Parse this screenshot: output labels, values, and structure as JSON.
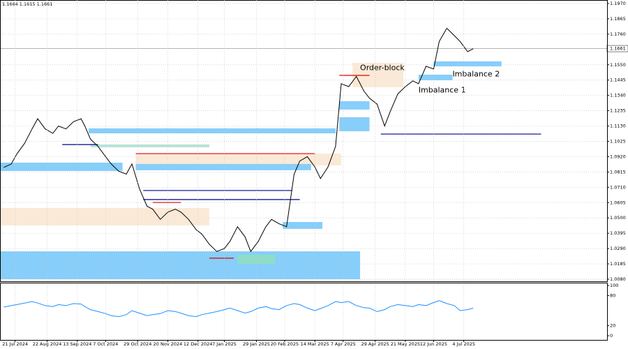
{
  "chart_data": [
    {
      "type": "line",
      "header": "1.1664 1.1615 1.1661",
      "xlim": [
        0,
        322
      ],
      "ylim": [
        1.008,
        1.197
      ],
      "yticks": [
        {
          "value": 1.197,
          "label": "1.1970"
        },
        {
          "value": 1.1865,
          "label": "1.1865"
        },
        {
          "value": 1.176,
          "label": "1.1760"
        },
        {
          "value": 1.155,
          "label": "1.1550"
        },
        {
          "value": 1.1445,
          "label": "1.1445"
        },
        {
          "value": 1.134,
          "label": "1.1340"
        },
        {
          "value": 1.1235,
          "label": "1.1235"
        },
        {
          "value": 1.113,
          "label": "1.1130"
        },
        {
          "value": 1.1025,
          "label": "1.1025"
        },
        {
          "value": 1.092,
          "label": "1.0920"
        },
        {
          "value": 1.0815,
          "label": "1.0815"
        },
        {
          "value": 1.071,
          "label": "1.0710"
        },
        {
          "value": 1.0605,
          "label": "1.0605"
        },
        {
          "value": 1.05,
          "label": "1.0500"
        },
        {
          "value": 1.0395,
          "label": "1.0395"
        },
        {
          "value": 1.029,
          "label": "1.0290"
        },
        {
          "value": 1.0185,
          "label": "1.0185"
        },
        {
          "value": 1.008,
          "label": "1.0080"
        }
      ],
      "grid": true,
      "last": {
        "value": 1.1661,
        "label": "1.1661"
      },
      "x": [
        2,
        6,
        9,
        13,
        17,
        20,
        24,
        28,
        31,
        35,
        39,
        43,
        45,
        48,
        52,
        56,
        59,
        63,
        67,
        70,
        74,
        78,
        81,
        85,
        89,
        93,
        96,
        100,
        104,
        107,
        111,
        115,
        119,
        122,
        126,
        130,
        133,
        137,
        141,
        144,
        148,
        152,
        156,
        159,
        163,
        167,
        170,
        174,
        178,
        181,
        185,
        189,
        193,
        196,
        200,
        204,
        207,
        211,
        215,
        219,
        222,
        226,
        230,
        233,
        237,
        241,
        244,
        248,
        251
      ],
      "series": [
        {
          "color": "#000000",
          "values": [
            1.0846,
            1.087,
            1.094,
            1.101,
            1.111,
            1.118,
            1.111,
            1.108,
            1.113,
            1.111,
            1.116,
            1.118,
            1.113,
            1.104,
            1.099,
            1.092,
            1.087,
            1.082,
            1.08,
            1.087,
            1.07,
            1.058,
            1.056,
            1.049,
            1.054,
            1.056,
            1.054,
            1.049,
            1.042,
            1.039,
            1.032,
            1.027,
            1.029,
            1.034,
            1.044,
            1.037,
            1.027,
            1.034,
            1.044,
            1.049,
            1.046,
            1.044,
            1.08,
            1.089,
            1.092,
            1.085,
            1.077,
            1.085,
            1.099,
            1.142,
            1.14,
            1.147,
            1.137,
            1.132,
            1.128,
            1.113,
            1.123,
            1.135,
            1.14,
            1.144,
            1.142,
            1.154,
            1.152,
            1.171,
            1.18,
            1.175,
            1.171,
            1.164,
            1.166
          ]
        }
      ],
      "zones": [
        {
          "x": [
            0,
            191
          ],
          "y": [
            1.008,
            1.0271
          ],
          "color": "#87cefa"
        },
        {
          "x": [
            0,
            111
          ],
          "y": [
            1.0448,
            1.0568
          ],
          "color": "#fbe9d7"
        },
        {
          "x": [
            0,
            65
          ],
          "y": [
            1.0822,
            1.0879
          ],
          "color": "#87cefa"
        },
        {
          "x": [
            72,
            181
          ],
          "y": [
            1.086,
            1.0941
          ],
          "color": "#fbe9d7"
        },
        {
          "x": [
            72,
            165
          ],
          "y": [
            1.0827,
            1.087
          ],
          "color": "#87cefa"
        },
        {
          "x": [
            47,
            178
          ],
          "y": [
            1.108,
            1.1114
          ],
          "color": "#87cefa"
        },
        {
          "x": [
            48,
            111
          ],
          "y": [
            1.0984,
            1.1004
          ],
          "color": "#b7e4d8"
        },
        {
          "x": [
            150,
            171
          ],
          "y": [
            1.0425,
            1.0472
          ],
          "color": "#87cefa"
        },
        {
          "x": [
            126,
            146
          ],
          "y": [
            1.0185,
            1.0248
          ],
          "color": "#8fdcc8"
        },
        {
          "x": [
            180,
            196
          ],
          "y": [
            1.1094,
            1.119
          ],
          "color": "#87cefa"
        },
        {
          "x": [
            180,
            196
          ],
          "y": [
            1.1243,
            1.13
          ],
          "color": "#87cefa"
        },
        {
          "x": [
            187,
            214
          ],
          "y": [
            1.1396,
            1.1563
          ],
          "color": "#fbe9d7"
        },
        {
          "x": [
            222,
            240
          ],
          "y": [
            1.1444,
            1.1482
          ],
          "color": "#87cefa"
        },
        {
          "x": [
            230,
            266
          ],
          "y": [
            1.1539,
            1.1573
          ],
          "color": "#87cefa"
        }
      ],
      "levels": [
        {
          "x": [
            72,
            167
          ],
          "value": 1.0941,
          "color": "#e00000"
        },
        {
          "x": [
            180,
            196
          ],
          "value": 1.1477,
          "color": "#e00000"
        },
        {
          "x": [
            202,
            287
          ],
          "value": 1.1075,
          "color": "#00008b"
        },
        {
          "x": [
            76,
            159
          ],
          "value": 1.0626,
          "color": "#00008b"
        },
        {
          "x": [
            76,
            155
          ],
          "value": 1.0688,
          "color": "#00008b"
        },
        {
          "x": [
            81,
            96
          ],
          "value": 1.0606,
          "color": "#e00000"
        },
        {
          "x": [
            33,
            52
          ],
          "value": 1.1003,
          "color": "#00008b"
        },
        {
          "x": [
            111,
            124
          ],
          "value": 1.0224,
          "color": "#e00000"
        }
      ],
      "annotations": [
        {
          "text": "Order-block",
          "x": 191,
          "y": 1.1527
        },
        {
          "text": "Imbalance 2",
          "x": 240,
          "y": 1.1485
        },
        {
          "text": "Imbalance 1",
          "x": 222,
          "y": 1.1375
        }
      ]
    },
    {
      "type": "line",
      "xlim": [
        0,
        322
      ],
      "ylim": [
        0,
        100
      ],
      "yticks": [
        100,
        80,
        20,
        0
      ],
      "xticks": [
        {
          "value": 8,
          "label": "21 Jul 2024"
        },
        {
          "value": 25,
          "label": "22 Aug 2024"
        },
        {
          "value": 41,
          "label": "13 Sep 2024"
        },
        {
          "value": 56,
          "label": "7 Oct 2024"
        },
        {
          "value": 73,
          "label": "29 Oct 2024"
        },
        {
          "value": 89,
          "label": "20 Nov 2024"
        },
        {
          "value": 105,
          "label": "12 Dec 2024"
        },
        {
          "value": 119,
          "label": "7 Jan 2025"
        },
        {
          "value": 136,
          "label": "29 Jan 2025"
        },
        {
          "value": 151,
          "label": "20 Feb 2025"
        },
        {
          "value": 167,
          "label": "14 Mar 2025"
        },
        {
          "value": 182,
          "label": "7 Apr 2025"
        },
        {
          "value": 199,
          "label": "29 Apr 2025"
        },
        {
          "value": 215,
          "label": "21 May 2025"
        },
        {
          "value": 230,
          "label": "12 Jun 2025"
        },
        {
          "value": 246,
          "label": "4 Jul 2025"
        }
      ],
      "x": [
        2,
        6,
        9,
        13,
        17,
        20,
        24,
        28,
        31,
        35,
        39,
        43,
        45,
        48,
        52,
        56,
        59,
        63,
        67,
        70,
        74,
        78,
        81,
        85,
        89,
        93,
        96,
        100,
        104,
        107,
        111,
        115,
        119,
        122,
        126,
        130,
        133,
        137,
        141,
        144,
        148,
        152,
        156,
        159,
        163,
        167,
        170,
        174,
        178,
        181,
        185,
        189,
        193,
        196,
        200,
        204,
        207,
        211,
        215,
        219,
        222,
        226,
        230,
        233,
        237,
        241,
        244,
        248,
        251
      ],
      "series": [
        {
          "color": "#1e90ff",
          "values": [
            57,
            60,
            62,
            65,
            68,
            65,
            60,
            58,
            62,
            60,
            64,
            63,
            58,
            52,
            48,
            44,
            40,
            38,
            42,
            50,
            45,
            40,
            42,
            44,
            50,
            48,
            45,
            40,
            38,
            42,
            45,
            48,
            52,
            55,
            50,
            45,
            48,
            55,
            58,
            54,
            52,
            60,
            64,
            62,
            55,
            50,
            54,
            60,
            68,
            66,
            68,
            60,
            56,
            55,
            48,
            52,
            58,
            62,
            60,
            58,
            62,
            60,
            66,
            70,
            64,
            60,
            50,
            52,
            55
          ]
        }
      ]
    }
  ]
}
